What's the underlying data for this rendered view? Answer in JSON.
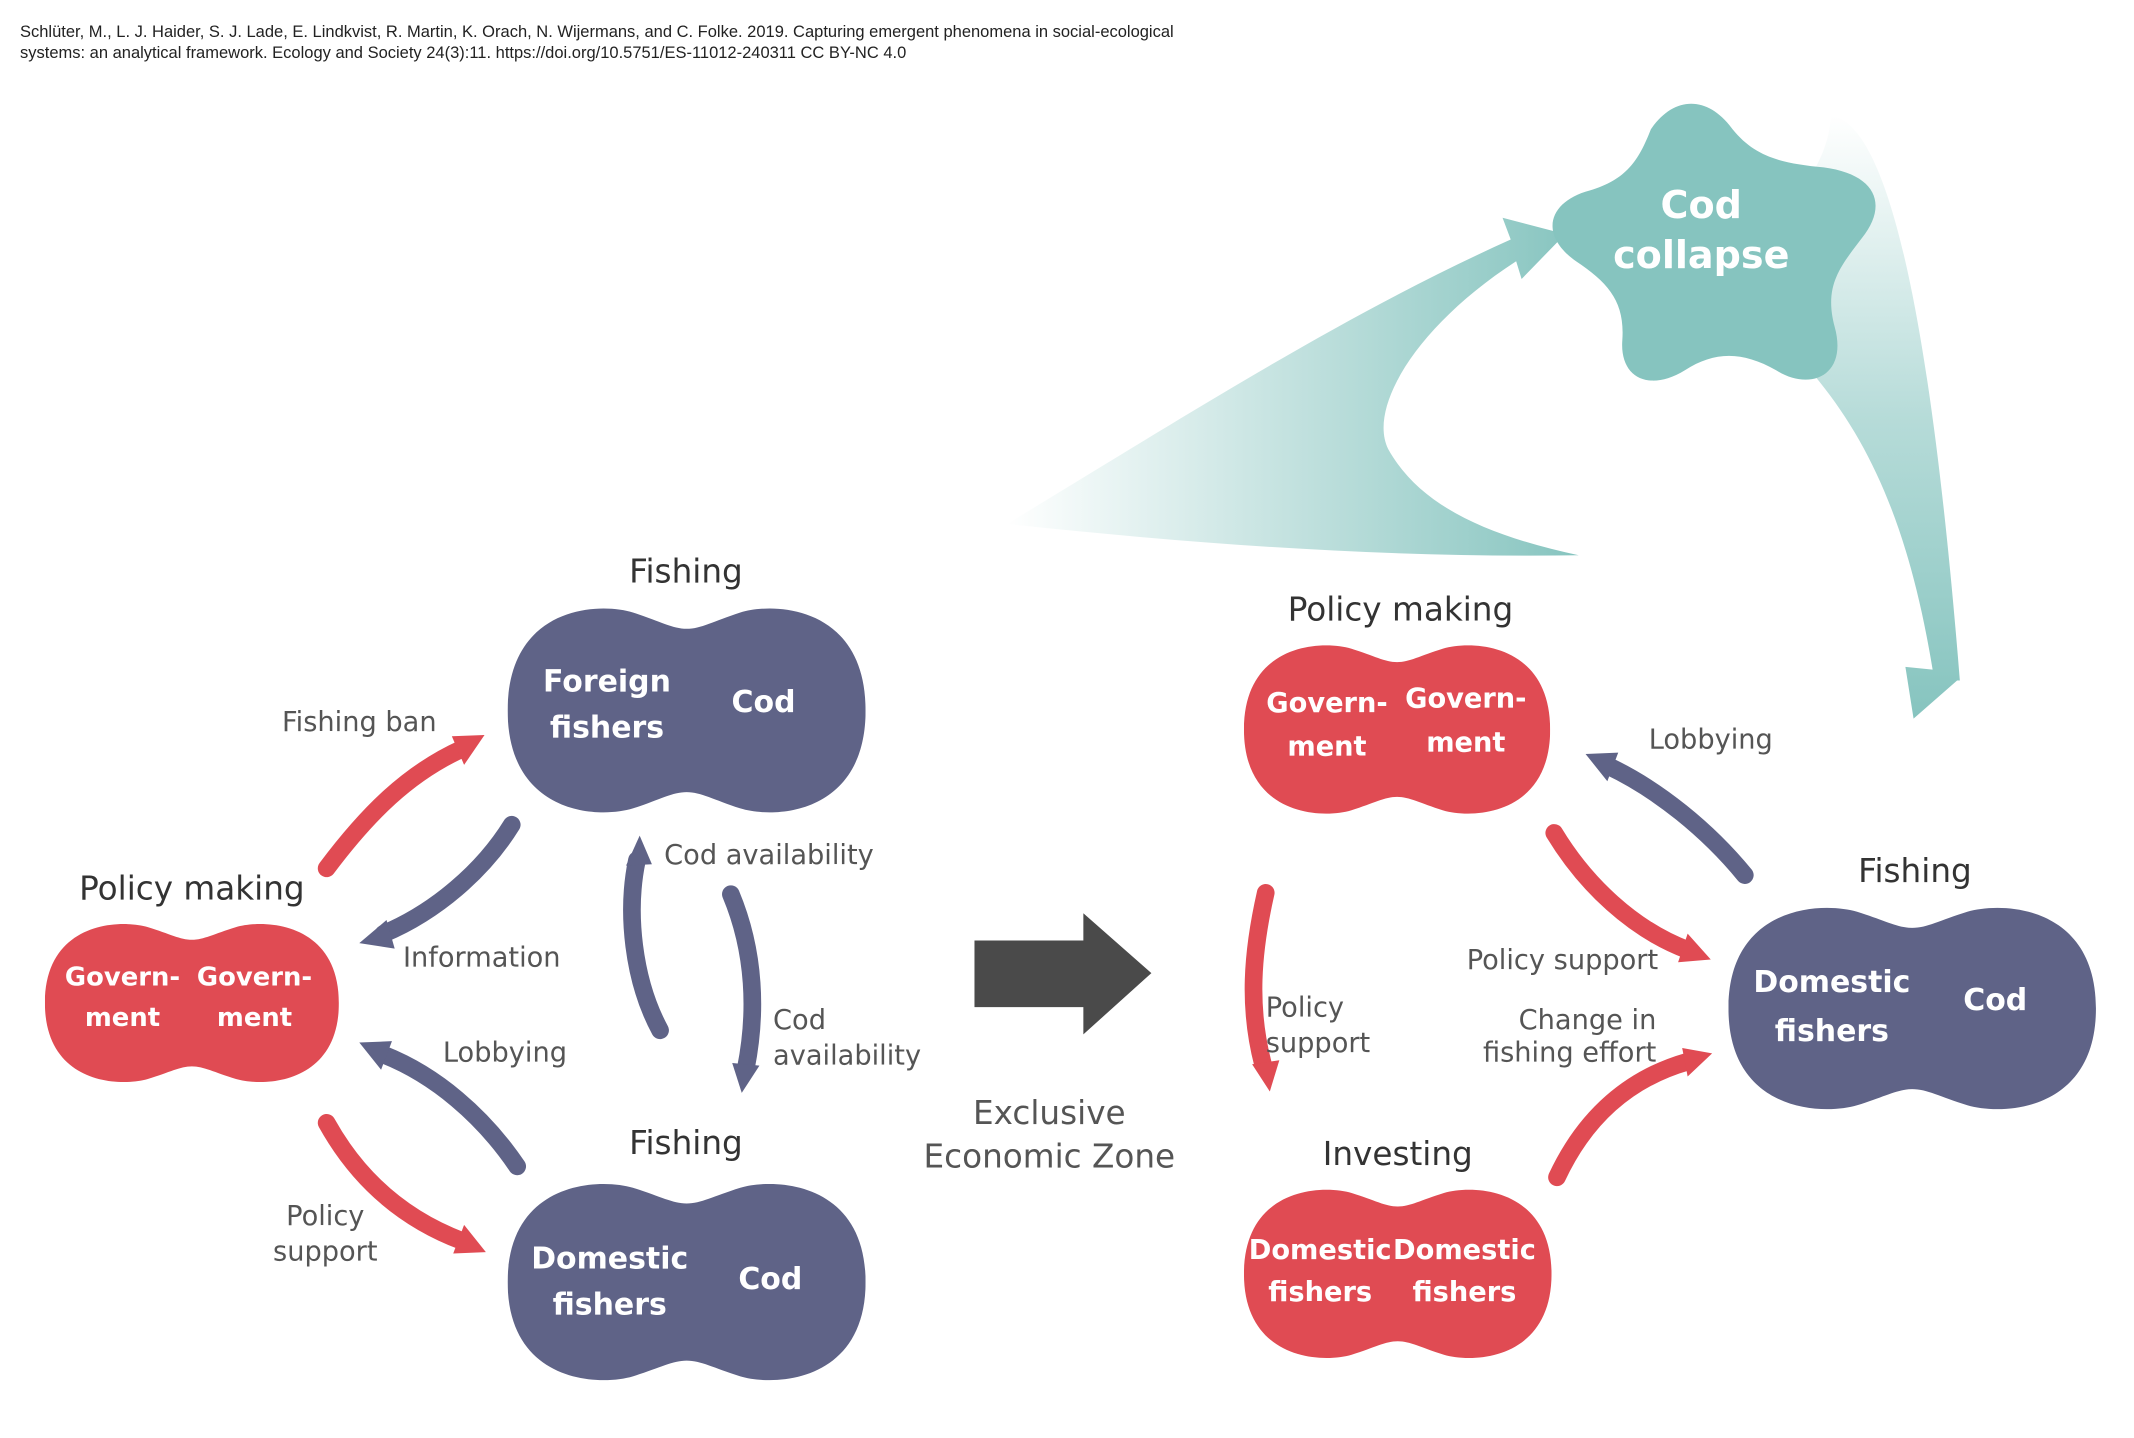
{
  "citation": {
    "line1": "Schlüter, M., L. J. Haider, S. J. Lade, E. Lindkvist, R. Martin, K. Orach, N. Wijermans, and C. Folke. 2019. Capturing emergent phenomena in social-ecological",
    "line2": "systems: an analytical framework. Ecology and Society 24(3):11. https://doi.org/10.5751/ES-11012-240311 CC BY-NC 4.0"
  },
  "colors": {
    "government_red": "#e04b53",
    "fisher_navy": "#5f6387",
    "collapse_teal": "#86c4bf",
    "big_arrow_gray": "#4a4a4a",
    "label_gray": "#555555"
  },
  "left_system": {
    "top_node": {
      "title": "Fishing",
      "left_line1": "Foreign",
      "left_line2": "fishers",
      "right_line1": "Cod"
    },
    "left_node": {
      "title": "Policy making",
      "left_line1": "Govern-",
      "left_line2": "ment",
      "right_line1": "Govern-",
      "right_line2": "ment"
    },
    "bottom_node": {
      "title": "Fishing",
      "left_line1": "Domestic",
      "left_line2": "fishers",
      "right_line1": "Cod"
    },
    "edges": {
      "fishing_ban": "Fishing ban",
      "information": "Information",
      "cod_availability_up": "Cod availability",
      "cod_availability_down_1": "Cod",
      "cod_availability_down_2": "availability",
      "lobbying": "Lobbying",
      "policy_support_1": "Policy",
      "policy_support_2": "support"
    }
  },
  "transition": {
    "label_line1": "Exclusive",
    "label_line2": "Economic Zone"
  },
  "right_system": {
    "top_node": {
      "title": "Policy making",
      "left_line1": "Govern-",
      "left_line2": "ment",
      "right_line1": "Govern-",
      "right_line2": "ment"
    },
    "right_node": {
      "title": "Fishing",
      "left_line1": "Domestic",
      "left_line2": "fishers",
      "right_line1": "Cod"
    },
    "bottom_node": {
      "title": "Investing",
      "left_line1": "Domestic",
      "left_line2": "fishers",
      "right_line1": "Domestic",
      "right_line2": "fishers"
    },
    "edges": {
      "lobbying": "Lobbying",
      "policy_support_right": "Policy support",
      "policy_support_left_1": "Policy",
      "policy_support_left_2": "support",
      "change_effort_1": "Change in",
      "change_effort_2": "fishing effort"
    }
  },
  "outcome": {
    "line1": "Cod",
    "line2": "collapse"
  }
}
